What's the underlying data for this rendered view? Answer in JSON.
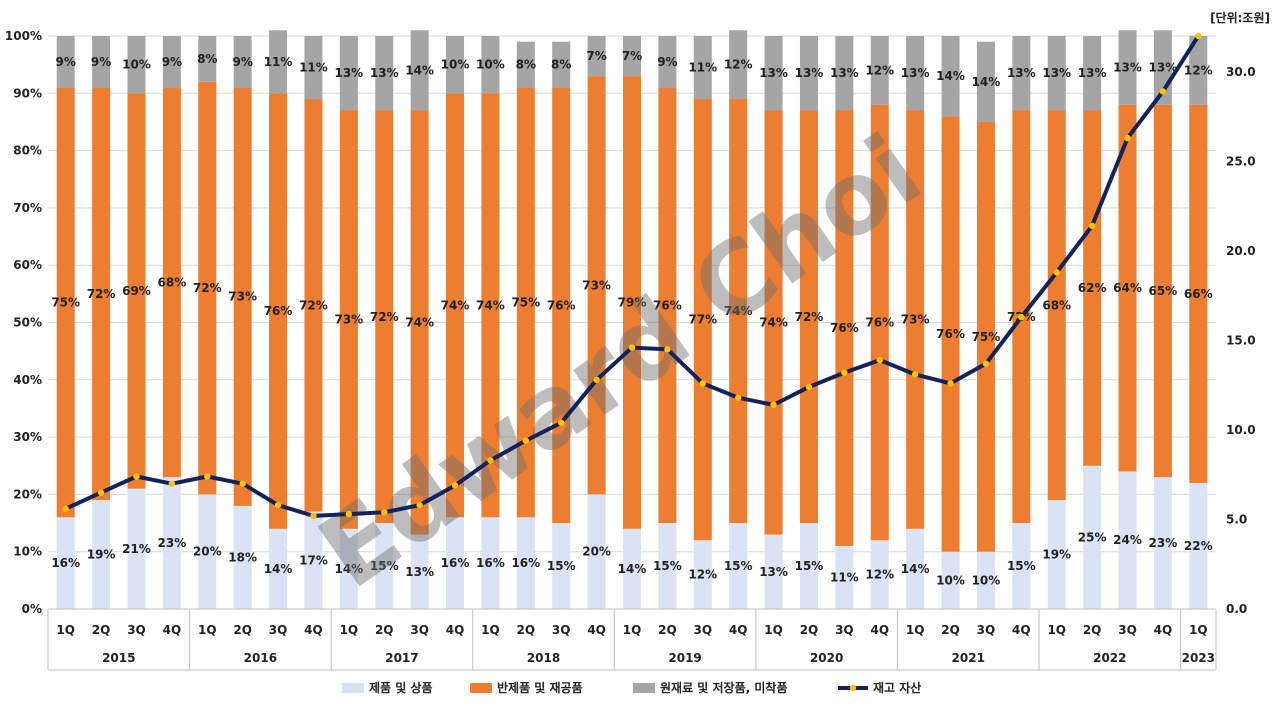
{
  "chart_data": {
    "type": "stacked-bar-with-line",
    "unit_label": "[단위:조원]",
    "watermark": "Edward Choi",
    "categories": [
      "1Q",
      "2Q",
      "3Q",
      "4Q",
      "1Q",
      "2Q",
      "3Q",
      "4Q",
      "1Q",
      "2Q",
      "3Q",
      "4Q",
      "1Q",
      "2Q",
      "3Q",
      "4Q",
      "1Q",
      "2Q",
      "3Q",
      "4Q",
      "1Q",
      "2Q",
      "3Q",
      "4Q",
      "1Q",
      "2Q",
      "3Q",
      "4Q",
      "1Q",
      "2Q",
      "3Q",
      "4Q",
      "1Q"
    ],
    "year_groups": [
      {
        "label": "2015",
        "count": 4
      },
      {
        "label": "2016",
        "count": 4
      },
      {
        "label": "2017",
        "count": 4
      },
      {
        "label": "2018",
        "count": 4
      },
      {
        "label": "2019",
        "count": 4
      },
      {
        "label": "2020",
        "count": 4
      },
      {
        "label": "2021",
        "count": 4
      },
      {
        "label": "2022",
        "count": 4
      },
      {
        "label": "2023",
        "count": 1
      }
    ],
    "y_left": {
      "ticks": [
        "0%",
        "10%",
        "20%",
        "30%",
        "40%",
        "50%",
        "60%",
        "70%",
        "80%",
        "90%",
        "100%"
      ],
      "range": [
        0,
        100
      ]
    },
    "y_right": {
      "ticks": [
        "0.0",
        "5.0",
        "10.0",
        "15.0",
        "20.0",
        "25.0",
        "30.0"
      ],
      "range": [
        0,
        32
      ]
    },
    "series": [
      {
        "name": "제품 및 상품",
        "color": "#dae3f3",
        "values": [
          16,
          19,
          21,
          23,
          20,
          18,
          14,
          17,
          14,
          15,
          13,
          16,
          16,
          16,
          15,
          20,
          14,
          15,
          12,
          15,
          13,
          15,
          11,
          12,
          14,
          10,
          10,
          15,
          19,
          25,
          24,
          23,
          22
        ]
      },
      {
        "name": "반제품 및 재공품",
        "color": "#ed7d31",
        "values": [
          75,
          72,
          69,
          68,
          72,
          73,
          76,
          72,
          73,
          72,
          74,
          74,
          74,
          75,
          76,
          73,
          79,
          76,
          77,
          74,
          74,
          72,
          76,
          76,
          73,
          76,
          75,
          72,
          68,
          62,
          64,
          65,
          66
        ]
      },
      {
        "name": "원재료 및 저장품, 미착품",
        "color": "#a5a5a5",
        "values": [
          9,
          9,
          10,
          9,
          8,
          9,
          11,
          11,
          13,
          13,
          14,
          10,
          10,
          8,
          8,
          7,
          7,
          9,
          11,
          12,
          13,
          13,
          13,
          12,
          13,
          14,
          14,
          13,
          13,
          13,
          13,
          13,
          12
        ]
      }
    ],
    "line": {
      "name": "재고 자산",
      "color": "#12235b",
      "marker_color": "#ffc000",
      "values": [
        5.6,
        6.5,
        7.4,
        7.0,
        7.4,
        7.0,
        5.8,
        5.2,
        5.3,
        5.4,
        5.8,
        6.9,
        8.3,
        9.4,
        10.4,
        12.8,
        14.6,
        14.5,
        12.6,
        11.8,
        11.4,
        12.4,
        13.2,
        13.9,
        13.1,
        12.6,
        13.7,
        16.3,
        18.8,
        21.4,
        26.3,
        28.9,
        32.0
      ]
    }
  }
}
